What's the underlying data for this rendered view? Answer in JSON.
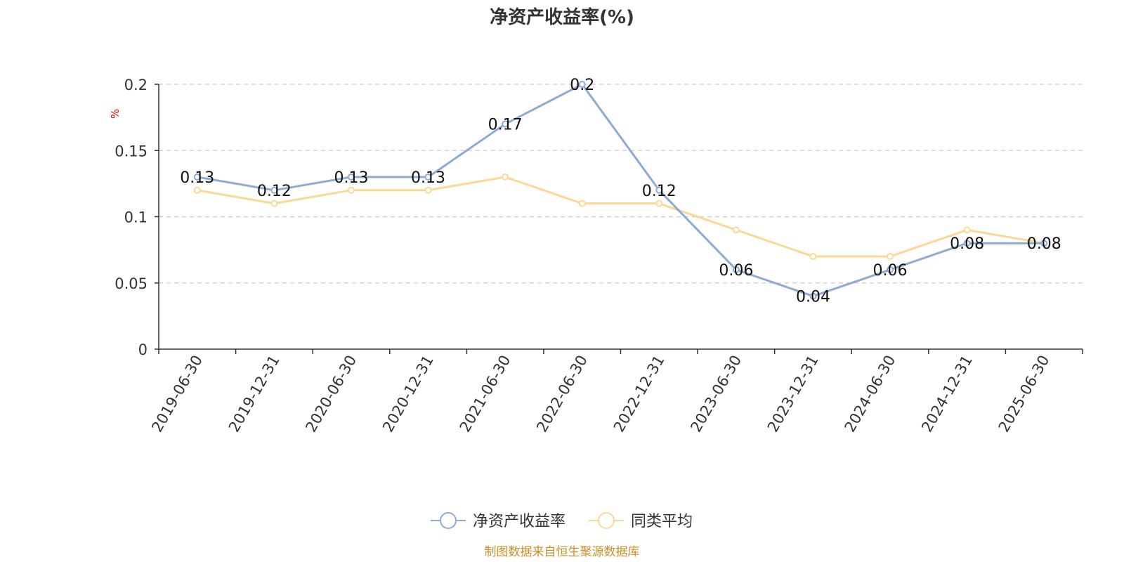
{
  "chart_data": {
    "type": "line",
    "title": "净资产收益率(%)",
    "ylabel": "%",
    "xlabel": "",
    "ylim": [
      0,
      0.2
    ],
    "y_ticks": [
      "0",
      "0.05",
      "0.1",
      "0.15",
      "0.2"
    ],
    "y_tick_values": [
      0,
      0.05,
      0.1,
      0.15,
      0.2
    ],
    "categories": [
      "2019-06-30",
      "2019-12-31",
      "2020-06-30",
      "2020-12-31",
      "2021-06-30",
      "2022-06-30",
      "2022-12-31",
      "2023-06-30",
      "2023-12-31",
      "2024-06-30",
      "2024-12-31",
      "2025-06-30"
    ],
    "series": [
      {
        "name": "净资产收益率",
        "color": "#8eabd6",
        "values": [
          0.13,
          0.12,
          0.13,
          0.13,
          0.17,
          0.2,
          0.12,
          0.06,
          0.04,
          0.06,
          0.08,
          0.08
        ],
        "labels": [
          "0.13",
          "0.12",
          "0.13",
          "0.13",
          "0.17",
          "0.2",
          "0.12",
          "0.06",
          "0.04",
          "0.06",
          "0.08",
          "0.08"
        ]
      },
      {
        "name": "同类平均",
        "color": "#fbd896",
        "values": [
          0.12,
          0.11,
          0.12,
          0.12,
          0.13,
          0.11,
          0.11,
          0.09,
          0.07,
          0.07,
          0.09,
          0.08
        ]
      }
    ],
    "grid": true,
    "legend_position": "bottom-center",
    "source": "制图数据来自恒生聚源数据库"
  }
}
